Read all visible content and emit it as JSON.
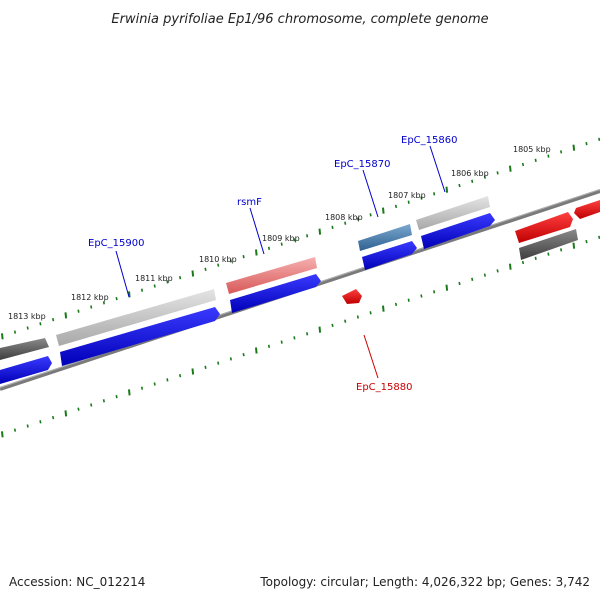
{
  "title": "Erwinia pyrifoliae Ep1/96 chromosome, complete genome",
  "footer": {
    "accession": "Accession: NC_012214",
    "summary": "Topology: circular; Length: 4,026,322 bp; Genes: 3,742"
  },
  "ticks": [
    {
      "label": "1813 kbp"
    },
    {
      "label": "1812 kbp"
    },
    {
      "label": "1811 kbp"
    },
    {
      "label": "1810 kbp"
    },
    {
      "label": "1809 kbp"
    },
    {
      "label": "1808 kbp"
    },
    {
      "label": "1807 kbp"
    },
    {
      "label": "1806 kbp"
    },
    {
      "label": "1805 kbp"
    }
  ],
  "gene_labels": [
    {
      "name": "EpC_15900",
      "color": "#0000cc"
    },
    {
      "name": "rsmF",
      "color": "#0000cc"
    },
    {
      "name": "EpC_15870",
      "color": "#0000cc"
    },
    {
      "name": "EpC_15860",
      "color": "#0000cc"
    },
    {
      "name": "EpC_15880",
      "color": "#cc0000"
    }
  ],
  "colors": {
    "backbone": "#7a7a7a",
    "tick": "#1a7a1a",
    "cds": "#0000ee",
    "gene_gray": "#bdbdbd",
    "gene_dark": "#555555",
    "gene_pink": "#e87878",
    "gene_steel": "#4a7fb0",
    "gene_red": "#e00000"
  }
}
